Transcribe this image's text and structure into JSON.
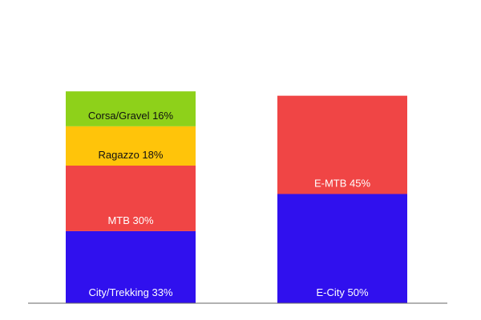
{
  "chart_data": {
    "type": "bar",
    "stacked": true,
    "categories": [
      "",
      ""
    ],
    "stacks": [
      {
        "segments": [
          {
            "label": "City/Trekking 33%",
            "value": 33,
            "color": "#3010ee",
            "text_color": "#ffffff"
          },
          {
            "label": "MTB 30%",
            "value": 30,
            "color": "#f04545",
            "text_color": "#ffffff"
          },
          {
            "label": "Ragazzo 18%",
            "value": 18,
            "color": "#ffc40a",
            "text_color": "#111111"
          },
          {
            "label": "Corsa/Gravel 16%",
            "value": 16,
            "color": "#8ed11a",
            "text_color": "#111111"
          }
        ]
      },
      {
        "segments": [
          {
            "label": "E-City 50%",
            "value": 50,
            "color": "#3010ee",
            "text_color": "#ffffff"
          },
          {
            "label": "E-MTB 45%",
            "value": 45,
            "color": "#f04545",
            "text_color": "#ffffff"
          }
        ]
      }
    ],
    "ylim": [
      0,
      100
    ],
    "grid": false,
    "legend": "none",
    "baseline_color": "#666666"
  }
}
